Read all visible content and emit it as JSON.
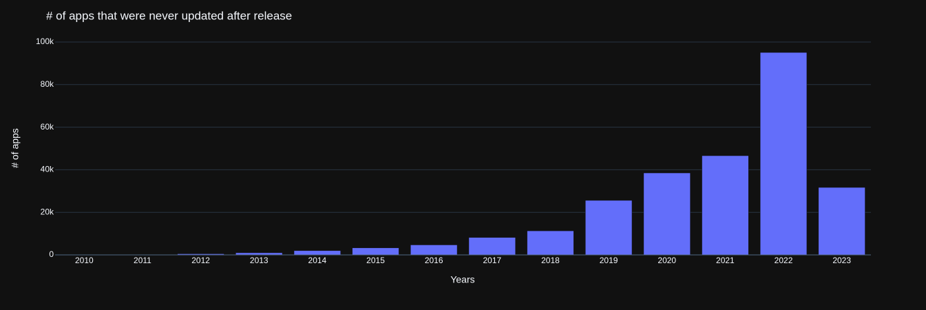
{
  "chart_data": {
    "type": "bar",
    "title": "# of apps that were never updated after release",
    "x_label": "Years",
    "y_label": "# of apps",
    "categories": [
      "2010",
      "2011",
      "2012",
      "2013",
      "2014",
      "2015",
      "2016",
      "2017",
      "2018",
      "2019",
      "2020",
      "2021",
      "2022",
      "2023"
    ],
    "values": [
      50,
      150,
      500,
      1000,
      2000,
      3300,
      4700,
      8200,
      11300,
      25600,
      38500,
      46600,
      95100,
      31700
    ],
    "color": "#636efa",
    "ylim": [
      0,
      100000
    ],
    "yticks": [
      0,
      {
        "value": 20000,
        "label": "20k"
      },
      {
        "value": 40000,
        "label": "40k"
      },
      {
        "value": 60000,
        "label": "60k"
      },
      {
        "value": 80000,
        "label": "80k"
      },
      {
        "value": 100000,
        "label": "100k"
      }
    ],
    "grid": true
  }
}
